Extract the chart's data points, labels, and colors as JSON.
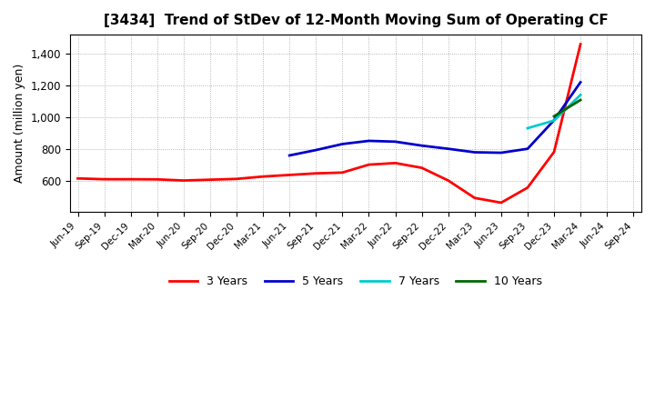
{
  "title": "[3434]  Trend of StDev of 12-Month Moving Sum of Operating CF",
  "ylabel": "Amount (million yen)",
  "background_color": "#ffffff",
  "grid_color": "#999999",
  "ylim": [
    400,
    1520
  ],
  "yticks": [
    600,
    800,
    1000,
    1200,
    1400
  ],
  "xtick_labels": [
    "Jun-19",
    "Sep-19",
    "Dec-19",
    "Mar-20",
    "Jun-20",
    "Sep-20",
    "Dec-20",
    "Mar-21",
    "Jun-21",
    "Sep-21",
    "Dec-21",
    "Mar-22",
    "Jun-22",
    "Sep-22",
    "Dec-22",
    "Mar-23",
    "Jun-23",
    "Sep-23",
    "Dec-23",
    "Mar-24",
    "Jun-24",
    "Sep-24"
  ],
  "legend_entries": [
    "3 Years",
    "5 Years",
    "7 Years",
    "10 Years"
  ],
  "legend_colors": [
    "#ff0000",
    "#0000cc",
    "#00cccc",
    "#006600"
  ],
  "series_3y": {
    "color": "#ff0000",
    "x": [
      0,
      1,
      2,
      3,
      4,
      5,
      6,
      7,
      8,
      9,
      10,
      11,
      12,
      13,
      14,
      15,
      16,
      17,
      18,
      19
    ],
    "y": [
      613,
      608,
      608,
      607,
      600,
      605,
      610,
      625,
      635,
      645,
      650,
      700,
      710,
      680,
      600,
      490,
      460,
      555,
      780,
      1460
    ]
  },
  "series_5y": {
    "color": "#0000cc",
    "x": [
      8,
      9,
      10,
      11,
      12,
      13,
      14,
      15,
      16,
      17,
      18,
      19
    ],
    "y": [
      758,
      792,
      830,
      850,
      845,
      820,
      800,
      778,
      775,
      800,
      980,
      1220
    ]
  },
  "series_7y": {
    "color": "#00cccc",
    "x": [
      17,
      18,
      19
    ],
    "y": [
      930,
      978,
      1140
    ]
  },
  "series_10y": {
    "color": "#006600",
    "x": [
      18,
      19
    ],
    "y": [
      1005,
      1108
    ]
  }
}
